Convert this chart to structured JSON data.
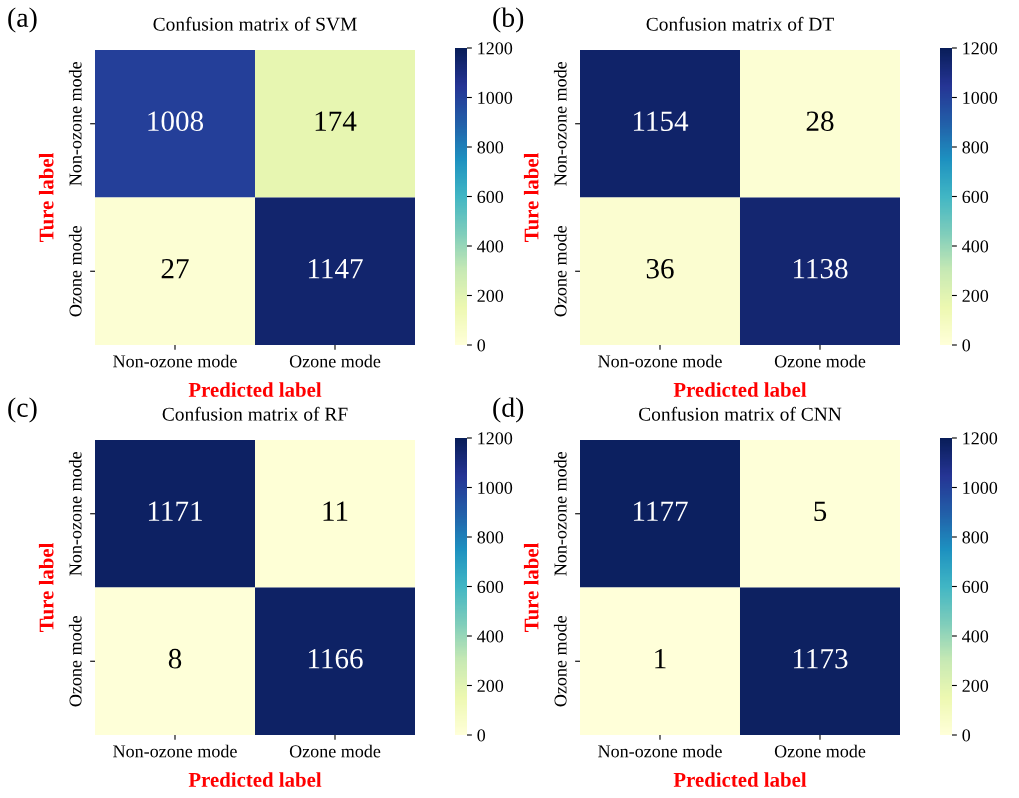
{
  "chart_data": [
    {
      "type": "heatmap",
      "title": "Confusion matrix of SVM",
      "xlabel": "Predicted label",
      "ylabel": "Ture label",
      "annotations": [
        "(a)"
      ],
      "categories": [
        "Non-ozone mode",
        "Ozone mode"
      ],
      "y_categories": [
        "Non-ozone mode",
        "Ozone mode"
      ],
      "cells": [
        [
          1008,
          174
        ],
        [
          27,
          1147
        ]
      ],
      "data_labels": true,
      "clim": [
        0,
        1200
      ],
      "cticks": [
        0,
        200,
        400,
        600,
        800,
        1000,
        1200
      ]
    },
    {
      "type": "heatmap",
      "title": "Confusion matrix of DT",
      "xlabel": "Predicted label",
      "ylabel": "Ture label",
      "annotations": [
        "(b)"
      ],
      "categories": [
        "Non-ozone mode",
        "Ozone mode"
      ],
      "y_categories": [
        "Non-ozone mode",
        "Ozone mode"
      ],
      "cells": [
        [
          1154,
          28
        ],
        [
          36,
          1138
        ]
      ],
      "data_labels": true,
      "clim": [
        0,
        1200
      ],
      "cticks": [
        0,
        200,
        400,
        600,
        800,
        1000,
        1200
      ]
    },
    {
      "type": "heatmap",
      "title": "Confusion matrix of RF",
      "xlabel": "Predicted label",
      "ylabel": "Ture label",
      "annotations": [
        "(c)"
      ],
      "categories": [
        "Non-ozone mode",
        "Ozone mode"
      ],
      "y_categories": [
        "Non-ozone mode",
        "Ozone mode"
      ],
      "cells": [
        [
          1171,
          11
        ],
        [
          8,
          1166
        ]
      ],
      "data_labels": true,
      "clim": [
        0,
        1200
      ],
      "cticks": [
        0,
        200,
        400,
        600,
        800,
        1000,
        1200
      ]
    },
    {
      "type": "heatmap",
      "title": "Confusion matrix of CNN",
      "xlabel": "Predicted label",
      "ylabel": "Ture label",
      "annotations": [
        "(d)"
      ],
      "categories": [
        "Non-ozone mode",
        "Ozone mode"
      ],
      "y_categories": [
        "Non-ozone mode",
        "Ozone mode"
      ],
      "cells": [
        [
          1177,
          5
        ],
        [
          1,
          1173
        ]
      ],
      "data_labels": true,
      "clim": [
        0,
        1200
      ],
      "cticks": [
        0,
        200,
        400,
        600,
        800,
        1000,
        1200
      ]
    }
  ]
}
